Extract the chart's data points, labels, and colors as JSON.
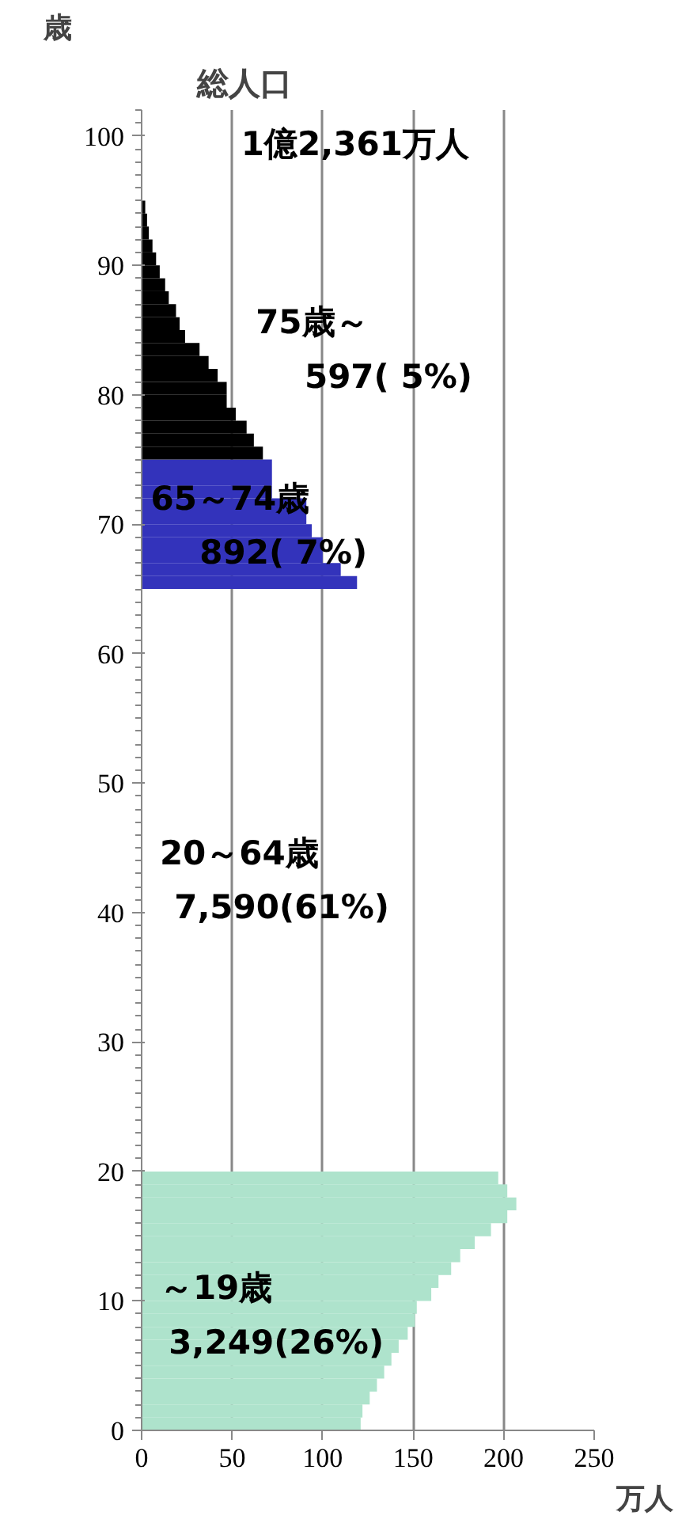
{
  "chart_data": {
    "type": "bar",
    "orientation": "horizontal",
    "ylabel": "歳",
    "xlabel": "万人",
    "annotations": [
      "総人口",
      "1億2,361万人",
      "75歳～",
      "597( 5%)",
      "65～74歳",
      "892( 7%)",
      "20～64歳",
      "7,590(61%)",
      "～19歳",
      "3,249(26%)"
    ],
    "series": [
      {
        "color": "#aee3cc",
        "x": [
          0,
          1,
          2,
          3,
          4,
          5,
          6,
          7,
          8,
          9,
          10,
          11,
          12,
          13,
          14,
          15,
          16,
          17,
          18,
          19
        ],
        "values": [
          121,
          122,
          126,
          130,
          134,
          138,
          142,
          147,
          151,
          152,
          160,
          164,
          171,
          176,
          184,
          193,
          202,
          207,
          202,
          197
        ]
      },
      {
        "color": "#3333bb",
        "x": [
          65,
          66,
          67,
          68,
          69,
          70,
          71,
          72,
          73,
          74
        ],
        "values": [
          119,
          110,
          100,
          100,
          94,
          91,
          91,
          72,
          72,
          72
        ]
      },
      {
        "color": "#000000",
        "x": [
          75,
          76,
          77,
          78,
          79,
          80,
          81,
          82,
          83,
          84,
          85,
          86,
          87,
          88,
          89,
          90,
          91,
          92,
          93,
          94
        ],
        "values": [
          67,
          62,
          58,
          52,
          47,
          47,
          42,
          37,
          32,
          24,
          21,
          19,
          15,
          13,
          10,
          8,
          6,
          4,
          3,
          2
        ]
      }
    ],
    "xlim": [
      0,
      250
    ],
    "xticks": [
      0,
      50,
      100,
      150,
      200,
      250
    ],
    "ylim": [
      0,
      102
    ],
    "yticks": [
      0,
      10,
      20,
      30,
      40,
      50,
      60,
      70,
      80,
      90,
      100
    ],
    "grid": "x"
  }
}
